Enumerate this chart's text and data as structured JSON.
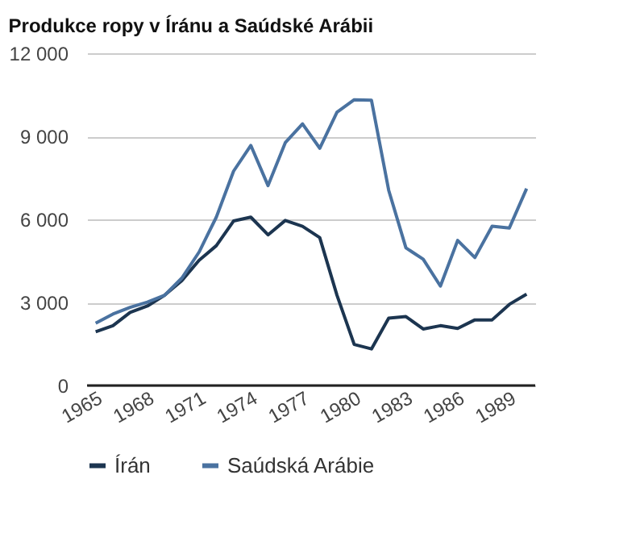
{
  "chart_data": {
    "type": "line",
    "title": "Produkce ropy v Íránu a Saúdské Arábii",
    "x": [
      1965,
      1966,
      1967,
      1968,
      1969,
      1970,
      1971,
      1972,
      1973,
      1974,
      1975,
      1976,
      1977,
      1978,
      1979,
      1980,
      1981,
      1982,
      1983,
      1984,
      1985,
      1986,
      1987,
      1988,
      1989,
      1990
    ],
    "series": [
      {
        "name": "Írán",
        "color": "#1c3550",
        "values": [
          1940,
          2160,
          2640,
          2870,
          3260,
          3790,
          4520,
          5050,
          5940,
          6080,
          5440,
          5960,
          5750,
          5340,
          3260,
          1480,
          1320,
          2430,
          2490,
          2040,
          2160,
          2060,
          2370,
          2370,
          2930,
          3300
        ]
      },
      {
        "name": "Saúdská Arábie",
        "color": "#4a72a0",
        "values": [
          2250,
          2580,
          2820,
          3010,
          3260,
          3880,
          4820,
          6080,
          7740,
          8670,
          7220,
          8770,
          9450,
          8570,
          9870,
          10320,
          10300,
          7050,
          4970,
          4560,
          3590,
          5240,
          4620,
          5750,
          5690,
          7110
        ]
      }
    ],
    "xlim": [
      1964.5,
      1990.5
    ],
    "xticks": [
      1965,
      1968,
      1971,
      1974,
      1977,
      1980,
      1983,
      1986,
      1989
    ],
    "ylim": [
      0,
      12000
    ],
    "yticks": [
      0,
      {
        "value": 3000,
        "label": "3 000"
      },
      {
        "value": 6000,
        "label": "6 000"
      },
      {
        "value": 9000,
        "label": "9 000"
      },
      {
        "value": 12000,
        "label": "12 000"
      }
    ],
    "grid": "y",
    "legend": "bottom",
    "marker": "none",
    "line_style": "solid"
  }
}
